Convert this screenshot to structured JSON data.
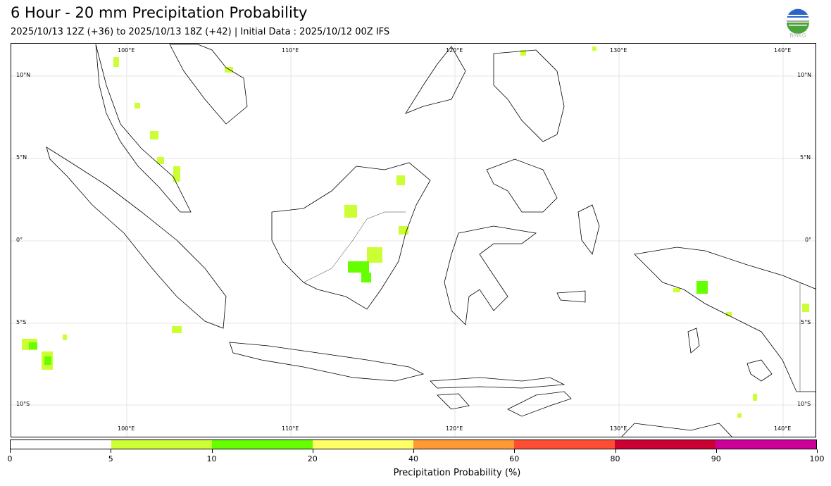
{
  "header": {
    "title": "6 Hour - 20 mm Precipitation Probability",
    "subtitle": "2025/10/13 12Z (+36) to 2025/10/13 18Z (+42) | Initial Data : 2025/10/12 00Z IFS",
    "logo_text": "BMKG"
  },
  "map": {
    "lon_labels": [
      "100°E",
      "110°E",
      "120°E",
      "130°E",
      "140°E"
    ],
    "lat_labels": [
      "10°N",
      "5°N",
      "0°",
      "5°S",
      "10°S"
    ],
    "extent": {
      "lon": [
        93,
        142
      ],
      "lat": [
        -12,
        12
      ]
    }
  },
  "colorbar": {
    "label": "Precipitation Probability (%)",
    "ticks": [
      "0",
      "5",
      "10",
      "20",
      "40",
      "60",
      "80",
      "90",
      "100"
    ],
    "colors": [
      "#ffffff",
      "#ccff33",
      "#66ff00",
      "#ffff66",
      "#ff9933",
      "#ff4d33",
      "#cc0033",
      "#cc0099"
    ]
  }
}
